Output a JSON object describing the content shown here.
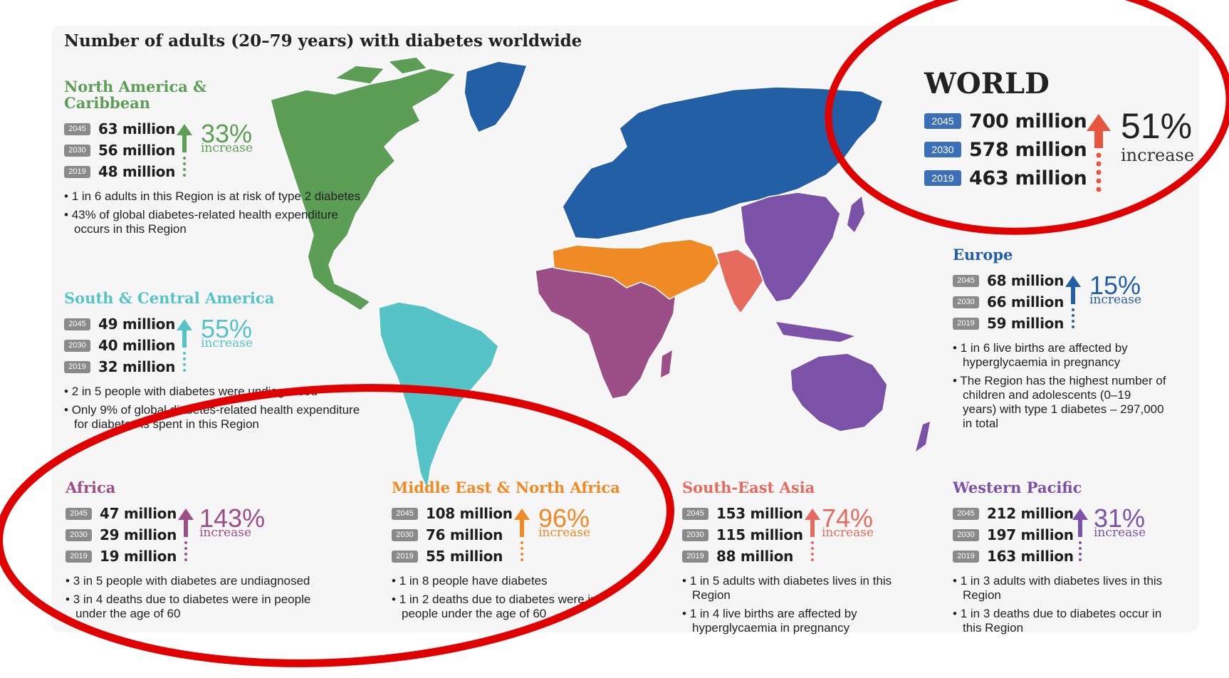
{
  "title": "Number of adults (20–79 years) with diabetes worldwide",
  "colors": {
    "north_america": "#5d9e57",
    "south_america": "#56c4c7",
    "europe": "#235fa6",
    "africa": "#9b4f86",
    "middle_east": "#f08a24",
    "south_east_asia": "#e66b5e",
    "western_pacific": "#7c52a8",
    "world_arrow": "#e8553e",
    "badge": "#8a8a8a",
    "world_badge": "#3b6fb7",
    "annotation": "#e00000"
  },
  "world": {
    "name": "WORLD",
    "rows": [
      {
        "year": "2045",
        "value": "700 million"
      },
      {
        "year": "2030",
        "value": "578 million"
      },
      {
        "year": "2019",
        "value": "463 million"
      }
    ],
    "percent": "51%",
    "increase": "increase"
  },
  "regions": [
    {
      "key": "north_america",
      "name": "North America & Caribbean",
      "rows": [
        {
          "year": "2045",
          "value": "63 million"
        },
        {
          "year": "2030",
          "value": "56 million"
        },
        {
          "year": "2019",
          "value": "48 million"
        }
      ],
      "percent": "33%",
      "increase": "increase",
      "notes": [
        "1 in 6 adults in this Region is at risk of type 2 diabetes",
        "43% of global diabetes-related health expenditure occurs in this Region"
      ]
    },
    {
      "key": "south_america",
      "name": "South & Central America",
      "rows": [
        {
          "year": "2045",
          "value": "49 million"
        },
        {
          "year": "2030",
          "value": "40 million"
        },
        {
          "year": "2019",
          "value": "32 million"
        }
      ],
      "percent": "55%",
      "increase": "increase",
      "notes": [
        "2 in 5 people with diabetes were undiagnosed",
        "Only 9% of global diabetes-related health expenditure for diabetes is spent in this Region"
      ]
    },
    {
      "key": "europe",
      "name": "Europe",
      "rows": [
        {
          "year": "2045",
          "value": "68 million"
        },
        {
          "year": "2030",
          "value": "66 million"
        },
        {
          "year": "2019",
          "value": "59 million"
        }
      ],
      "percent": "15%",
      "increase": "increase",
      "notes": [
        "1 in 6 live births are affected by hyperglycaemia in pregnancy",
        "The Region has the highest number of children and adolescents (0–19 years) with type 1 diabetes – 297,000 in total"
      ]
    },
    {
      "key": "africa",
      "name": "Africa",
      "rows": [
        {
          "year": "2045",
          "value": "47 million"
        },
        {
          "year": "2030",
          "value": "29 million"
        },
        {
          "year": "2019",
          "value": "19 million"
        }
      ],
      "percent": "143%",
      "increase": "increase",
      "notes": [
        "3 in 5 people with diabetes are undiagnosed",
        "3 in 4 deaths due to diabetes were in people under the age of 60"
      ]
    },
    {
      "key": "middle_east",
      "name": "Middle East & North Africa",
      "rows": [
        {
          "year": "2045",
          "value": "108 million"
        },
        {
          "year": "2030",
          "value": "76 million"
        },
        {
          "year": "2019",
          "value": "55 million"
        }
      ],
      "percent": "96%",
      "increase": "increase",
      "notes": [
        "1 in 8 people have diabetes",
        "1 in 2 deaths due to diabetes were in people under the age of 60"
      ]
    },
    {
      "key": "south_east_asia",
      "name": "South-East Asia",
      "rows": [
        {
          "year": "2045",
          "value": "153 million"
        },
        {
          "year": "2030",
          "value": "115 million"
        },
        {
          "year": "2019",
          "value": "88 million"
        }
      ],
      "percent": "74%",
      "increase": "increase",
      "notes": [
        "1 in 5 adults with diabetes lives in this Region",
        "1 in 4 live births are affected by hyperglycaemia in pregnancy"
      ]
    },
    {
      "key": "western_pacific",
      "name": "Western Pacific",
      "rows": [
        {
          "year": "2045",
          "value": "212 million"
        },
        {
          "year": "2030",
          "value": "197 million"
        },
        {
          "year": "2019",
          "value": "163 million"
        }
      ],
      "percent": "31%",
      "increase": "increase",
      "notes": [
        "1 in 3 adults with diabetes lives in this Region",
        "1 in 3 deaths due to diabetes occur in this Region"
      ]
    }
  ]
}
